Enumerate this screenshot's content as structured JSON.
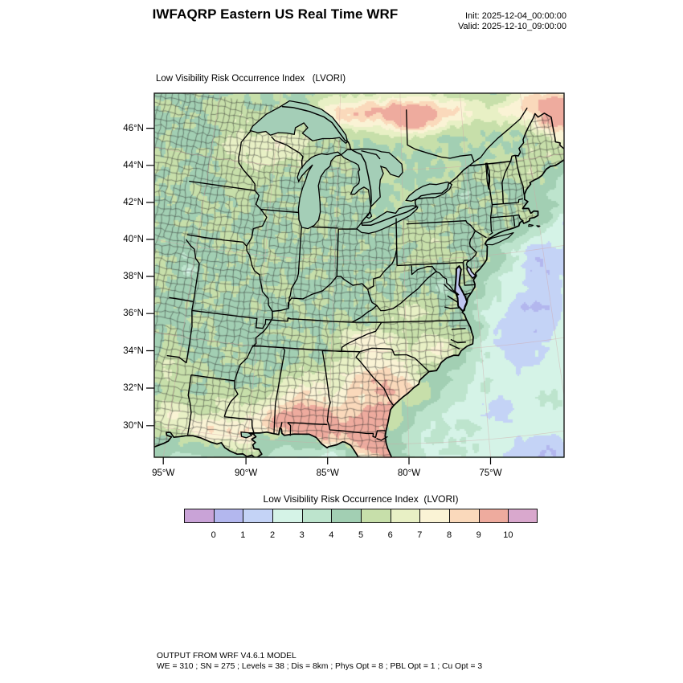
{
  "header": {
    "title": "IWFAQRP Eastern US Real Time WRF",
    "init": "Init: 2025-12-04_00:00:00",
    "valid": "Valid: 2025-12-10_09:00:00"
  },
  "map": {
    "field_title": "Low Visibility Risk Occurrence Index   (LVORI)",
    "x_axis_ticks": [
      "95°W",
      "90°W",
      "85°W",
      "80°W",
      "75°W"
    ],
    "y_axis_ticks": [
      "46°N",
      "44°N",
      "42°N",
      "40°N",
      "38°N",
      "36°N",
      "34°N",
      "32°N",
      "30°N"
    ]
  },
  "colorbar": {
    "title": "Low Visibility Risk Occurrence Index  (LVORI)",
    "tick_labels": [
      "0",
      "1",
      "2",
      "3",
      "4",
      "5",
      "6",
      "7",
      "8",
      "9",
      "10"
    ],
    "colors": [
      "#c9a3d7",
      "#b3b7ee",
      "#c4d3f6",
      "#d5f3e7",
      "#bde4cd",
      "#a2cfb3",
      "#c7dfaa",
      "#e8f0c5",
      "#faf3d5",
      "#fad9bb",
      "#eeab9e",
      "#d9a8cd"
    ]
  },
  "footer": {
    "line1": "OUTPUT FROM WRF V4.6.1 MODEL",
    "line2": "WE = 310 ; SN = 275 ; Levels = 38 ; Dis = 8km ; Phys Opt = 8 ; PBL Opt = 1 ; Cu Opt = 3"
  },
  "chart_data": {
    "type": "heatmap",
    "title": "Low Visibility Risk Occurrence Index   (LVORI)",
    "colorbar_range": [
      0,
      10
    ],
    "colorbar_colors": [
      "#c9a3d7",
      "#b3b7ee",
      "#c4d3f6",
      "#d5f3e7",
      "#bde4cd",
      "#a2cfb3",
      "#c7dfaa",
      "#e8f0c5",
      "#faf3d5",
      "#fad9bb",
      "#eeab9e",
      "#d9a8cd"
    ],
    "x_ticks": [
      "95°W",
      "90°W",
      "85°W",
      "80°W",
      "75°W"
    ],
    "y_ticks": [
      "46°N",
      "44°N",
      "42°N",
      "40°N",
      "38°N",
      "36°N",
      "34°N",
      "32°N",
      "30°N"
    ],
    "description_values": "LVORI index 0-10 shaded over eastern US; mostly 4-5 (green), 7-10 (cream/salmon) over Gulf coast, Deep South and southern Ontario/Quebec, 1-3 (blue/lavender) offshore Atlantic patches"
  }
}
